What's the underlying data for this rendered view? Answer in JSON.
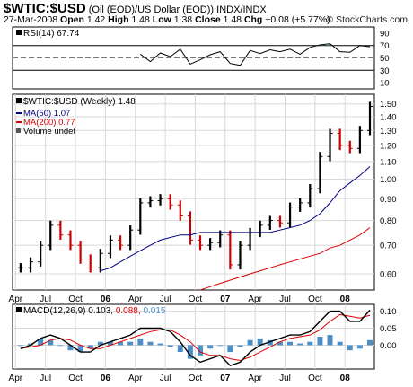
{
  "header": {
    "symbol": "$WTIC:$USD",
    "description": "(Oil (EOD)/US Dollar (EOD))",
    "exchange": "INDX/INDX",
    "date": "27-Mar-2008",
    "open_label": "Open",
    "open": "1.42",
    "high_label": "High",
    "high": "1.48",
    "low_label": "Low",
    "low": "1.38",
    "close_label": "Close",
    "close": "1.48",
    "chg_label": "Chg",
    "chg": "+0.08 (+5.77%)",
    "watermark": "© StockCharts.com"
  },
  "colors": {
    "up": "#000000",
    "down": "#cc0000",
    "ma50": "#000080",
    "ma200": "#dd0000",
    "macd_signal": "#dd0000",
    "histogram": "#4a8fc8",
    "rsi_fill": "#5a9a5a",
    "grid": "#d8d8d8"
  },
  "chart_data": [
    {
      "type": "line",
      "panel": "rsi",
      "legend": "RSI(14) 67.74",
      "y_ticks": [
        10,
        30,
        50,
        70,
        90
      ],
      "levels": [
        30,
        70
      ],
      "ylim": [
        0,
        100
      ],
      "x": [
        "2006-04",
        "2006-05",
        "2006-06",
        "2006-07",
        "2006-08",
        "2006-09",
        "2006-10",
        "2006-11",
        "2006-12",
        "2007-01",
        "2007-02",
        "2007-03",
        "2007-04",
        "2007-05",
        "2007-06",
        "2007-07",
        "2007-08",
        "2007-09",
        "2007-10",
        "2007-11",
        "2007-12",
        "2008-01",
        "2008-02",
        "2008-03"
      ],
      "values": [
        56,
        44,
        58,
        52,
        64,
        40,
        47,
        55,
        60,
        41,
        38,
        62,
        57,
        63,
        60,
        64,
        56,
        67,
        71,
        73,
        60,
        59,
        70,
        68
      ]
    },
    {
      "type": "line",
      "panel": "price",
      "title": "$WTIC:$USD (Weekly) 1.48",
      "legend": [
        "MA(50) 1.07",
        "MA(200) 0.77",
        "Volume undef"
      ],
      "scale": "log",
      "ylim": [
        0.55,
        1.58
      ],
      "y_ticks": [
        0.6,
        0.7,
        0.8,
        0.9,
        1.0,
        1.1,
        1.2,
        1.3,
        1.4,
        1.5
      ],
      "x_ticks": [
        "Apr",
        "Jul",
        "Oct",
        "06",
        "Apr",
        "Jul",
        "Oct",
        "07",
        "Apr",
        "Jul",
        "Oct",
        "08"
      ],
      "x": [
        "2005-04",
        "2005-05",
        "2005-06",
        "2005-07",
        "2005-08",
        "2005-09",
        "2005-10",
        "2005-11",
        "2005-12",
        "2006-01",
        "2006-02",
        "2006-03",
        "2006-04",
        "2006-05",
        "2006-06",
        "2006-07",
        "2006-08",
        "2006-09",
        "2006-10",
        "2006-11",
        "2006-12",
        "2007-01",
        "2007-02",
        "2007-03",
        "2007-04",
        "2007-05",
        "2007-06",
        "2007-07",
        "2007-08",
        "2007-09",
        "2007-10",
        "2007-11",
        "2007-12",
        "2008-01",
        "2008-02",
        "2008-03"
      ],
      "series": [
        {
          "name": "$WTIC:$USD",
          "values": [
            0.62,
            0.64,
            0.7,
            0.78,
            0.74,
            0.7,
            0.65,
            0.62,
            0.67,
            0.72,
            0.7,
            0.76,
            0.88,
            0.89,
            0.9,
            0.87,
            0.82,
            0.72,
            0.7,
            0.71,
            0.74,
            0.63,
            0.7,
            0.75,
            0.78,
            0.8,
            0.79,
            0.86,
            0.88,
            0.95,
            1.13,
            1.28,
            1.2,
            1.18,
            1.3,
            1.48
          ]
        },
        {
          "name": "MA(50)",
          "values": [
            null,
            null,
            null,
            null,
            null,
            null,
            null,
            null,
            0.61,
            0.62,
            0.64,
            0.66,
            0.68,
            0.7,
            0.72,
            0.73,
            0.74,
            0.74,
            0.75,
            0.75,
            0.75,
            0.75,
            0.75,
            0.75,
            0.75,
            0.75,
            0.76,
            0.77,
            0.78,
            0.8,
            0.83,
            0.88,
            0.94,
            0.98,
            1.02,
            1.07
          ]
        },
        {
          "name": "MA(200)",
          "values": [
            null,
            null,
            null,
            null,
            null,
            null,
            null,
            null,
            null,
            null,
            null,
            null,
            null,
            null,
            null,
            null,
            null,
            null,
            0.55,
            0.56,
            0.57,
            0.58,
            0.59,
            0.6,
            0.61,
            0.62,
            0.63,
            0.64,
            0.65,
            0.66,
            0.67,
            0.69,
            0.7,
            0.72,
            0.74,
            0.77
          ]
        }
      ]
    },
    {
      "type": "line",
      "panel": "macd",
      "legend": {
        "label": "MACD(12,26,9)",
        "macd": "0.103,",
        "signal": "0.088,",
        "hist": "0.015"
      },
      "y_ticks": [
        "0.10",
        "0.05",
        "0.00"
      ],
      "ylim": [
        -0.07,
        0.12
      ],
      "x": [
        "2005-04",
        "2005-05",
        "2005-06",
        "2005-07",
        "2005-08",
        "2005-09",
        "2005-10",
        "2005-11",
        "2005-12",
        "2006-01",
        "2006-02",
        "2006-03",
        "2006-04",
        "2006-05",
        "2006-06",
        "2006-07",
        "2006-08",
        "2006-09",
        "2006-10",
        "2006-11",
        "2006-12",
        "2007-01",
        "2007-02",
        "2007-03",
        "2007-04",
        "2007-05",
        "2007-06",
        "2007-07",
        "2007-08",
        "2007-09",
        "2007-10",
        "2007-11",
        "2007-12",
        "2008-01",
        "2008-02",
        "2008-03"
      ],
      "series": [
        {
          "name": "MACD",
          "values": [
            -0.01,
            0.0,
            0.02,
            0.03,
            0.02,
            0.0,
            -0.02,
            -0.02,
            0.0,
            0.01,
            0.02,
            0.03,
            0.05,
            0.05,
            0.05,
            0.04,
            0.01,
            -0.03,
            -0.05,
            -0.04,
            -0.03,
            -0.06,
            -0.05,
            -0.02,
            0.0,
            0.01,
            0.02,
            0.03,
            0.03,
            0.04,
            0.07,
            0.1,
            0.1,
            0.07,
            0.07,
            0.103
          ]
        },
        {
          "name": "Signal",
          "values": [
            -0.01,
            -0.005,
            0.0,
            0.015,
            0.02,
            0.015,
            0.0,
            -0.01,
            -0.01,
            0.0,
            0.01,
            0.02,
            0.03,
            0.04,
            0.045,
            0.045,
            0.03,
            0.01,
            -0.02,
            -0.03,
            -0.03,
            -0.04,
            -0.045,
            -0.035,
            -0.02,
            -0.005,
            0.01,
            0.02,
            0.025,
            0.03,
            0.045,
            0.07,
            0.09,
            0.085,
            0.08,
            0.088
          ]
        },
        {
          "name": "Histogram",
          "values": [
            0.0,
            0.005,
            0.02,
            0.015,
            0.0,
            -0.015,
            -0.02,
            -0.01,
            0.01,
            0.01,
            0.01,
            0.01,
            0.02,
            0.01,
            0.005,
            -0.005,
            -0.02,
            -0.04,
            -0.03,
            -0.01,
            0.0,
            -0.02,
            -0.005,
            0.015,
            0.02,
            0.015,
            0.01,
            0.01,
            0.005,
            0.01,
            0.025,
            0.03,
            0.01,
            -0.015,
            -0.01,
            0.015
          ]
        }
      ]
    }
  ]
}
